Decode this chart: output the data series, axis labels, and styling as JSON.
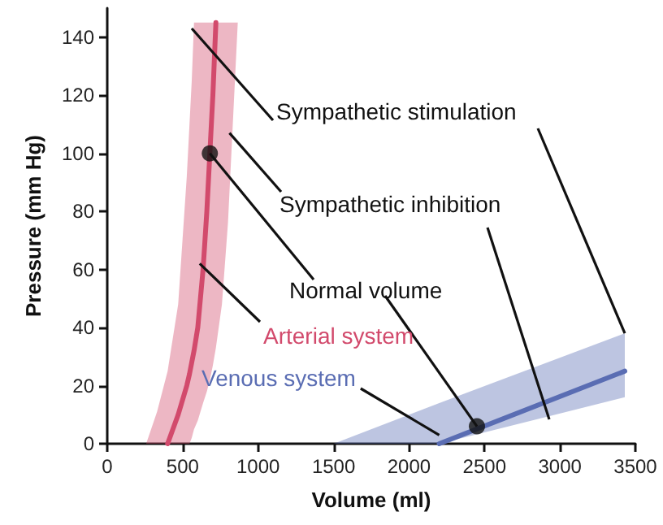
{
  "chart_data": {
    "type": "line",
    "xlabel": "Volume (ml)",
    "ylabel": "Pressure (mm Hg)",
    "xlim": [
      0,
      3500
    ],
    "xticks": [
      0,
      500,
      1000,
      1500,
      2000,
      2500,
      3000,
      3500
    ],
    "ylim": [
      0,
      150
    ],
    "yticks": [
      0,
      20,
      40,
      60,
      80,
      100,
      120,
      140
    ],
    "series": [
      {
        "color": "#d24a6c",
        "x": [
          258,
          330,
          400,
          470,
          527,
          545,
          560,
          575,
          600,
          635,
          660,
          680,
          700,
          720,
          760,
          800,
          865
        ],
        "values": [
          null,
          null,
          0,
          10,
          20,
          24,
          28,
          32,
          40,
          60,
          80,
          100,
          120,
          145,
          null,
          null,
          null
        ],
        "lower": [
          0,
          0,
          0,
          0,
          0,
          0,
          2,
          5,
          8,
          14,
          18,
          22,
          27,
          33,
          48,
          76,
          145
        ],
        "upper": [
          0,
          11,
          25,
          48,
          92,
          110,
          125,
          145,
          145,
          145,
          145,
          145,
          145,
          145,
          145,
          145,
          145
        ]
      },
      {
        "color": "#5a6db3",
        "x": [
          1500,
          2200,
          3430
        ],
        "values": [
          null,
          0,
          25
        ],
        "lower": [
          0,
          0,
          16
        ],
        "upper": [
          0,
          14,
          38
        ]
      },
      {
        "type": "scatter",
        "color": "#111111",
        "marker": "circle",
        "x": [
          680,
          2450
        ],
        "values": [
          100,
          6
        ]
      }
    ],
    "annotations": [
      {
        "text": "Sympathetic stimulation",
        "x": 560,
        "y": 143
      },
      {
        "text": "Sympathetic inhibition",
        "x": 810,
        "y": 107
      },
      {
        "text": "Normal volume",
        "x": 680,
        "y": 100
      },
      {
        "text": "Arterial system",
        "x": 613,
        "y": 62
      },
      {
        "text": "Venous system",
        "x": 2200,
        "y": 3
      }
    ],
    "grid": false
  }
}
